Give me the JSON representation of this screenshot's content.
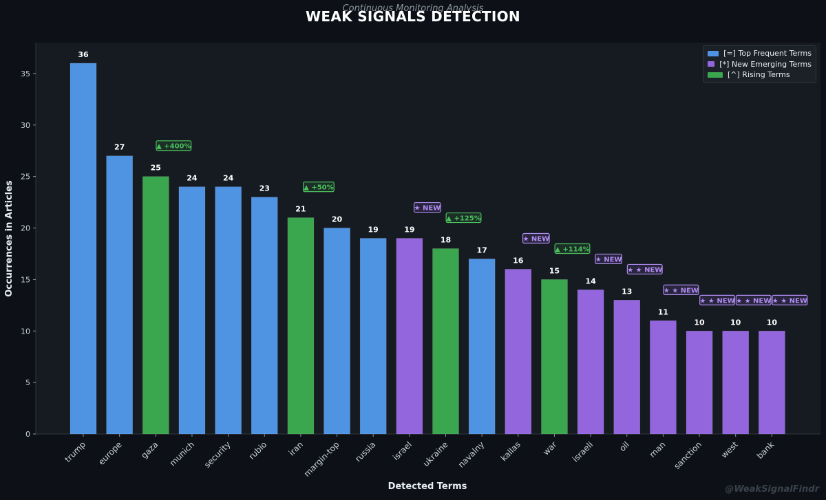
{
  "title": "WEAK SIGNALS DETECTION",
  "subtitle": "Continuous Monitoring Analysis",
  "watermark": "@WeakSignalFindr",
  "colors": {
    "top": "#4f94e3",
    "new": "#9366de",
    "rising": "#3aa64d",
    "new_label": "#b08cf0",
    "rising_label": "#4cc05e",
    "background": "#0d1117",
    "plot_bg": "#161b22"
  },
  "legend": [
    {
      "label": "[=] Top Frequent Terms",
      "category": "top"
    },
    {
      "label": "[*] New Emerging Terms",
      "category": "new"
    },
    {
      "label": "[^] Rising Terms",
      "category": "rising"
    }
  ],
  "chart_data": {
    "type": "bar",
    "title": "WEAK SIGNALS DETECTION",
    "subtitle": "Continuous Monitoring Analysis",
    "xlabel": "Detected Terms",
    "ylabel": "Occurrences in Articles",
    "ylim": [
      0,
      38
    ],
    "yticks": [
      0,
      5,
      10,
      15,
      20,
      25,
      30,
      35
    ],
    "legend_position": "top-right",
    "grid": false,
    "categories": [
      "trump",
      "europe",
      "gaza",
      "munich",
      "security",
      "rubio",
      "iran",
      "margin-top",
      "russia",
      "israel",
      "ukraine",
      "navalny",
      "kallas",
      "war",
      "israeli",
      "oil",
      "man",
      "sanction",
      "west",
      "bank"
    ],
    "values": [
      36,
      27,
      25,
      24,
      24,
      23,
      21,
      20,
      19,
      19,
      18,
      17,
      16,
      15,
      14,
      13,
      11,
      10,
      10,
      10
    ],
    "series_type": [
      "top",
      "top",
      "rising",
      "top",
      "top",
      "top",
      "rising",
      "top",
      "top",
      "new",
      "rising",
      "top",
      "new",
      "rising",
      "new",
      "new",
      "new",
      "new",
      "new",
      "new"
    ],
    "annotations": [
      "",
      "",
      "▲ +400%",
      "",
      "",
      "",
      "▲ +50%",
      "",
      "",
      "★ NEW",
      "▲ +125%",
      "",
      "★ NEW",
      "▲ +114%",
      "★ NEW",
      "★ ★ NEW",
      "★ ★ NEW",
      "★ ★ NEW",
      "★ ★ NEW",
      "★ ★ NEW"
    ]
  }
}
